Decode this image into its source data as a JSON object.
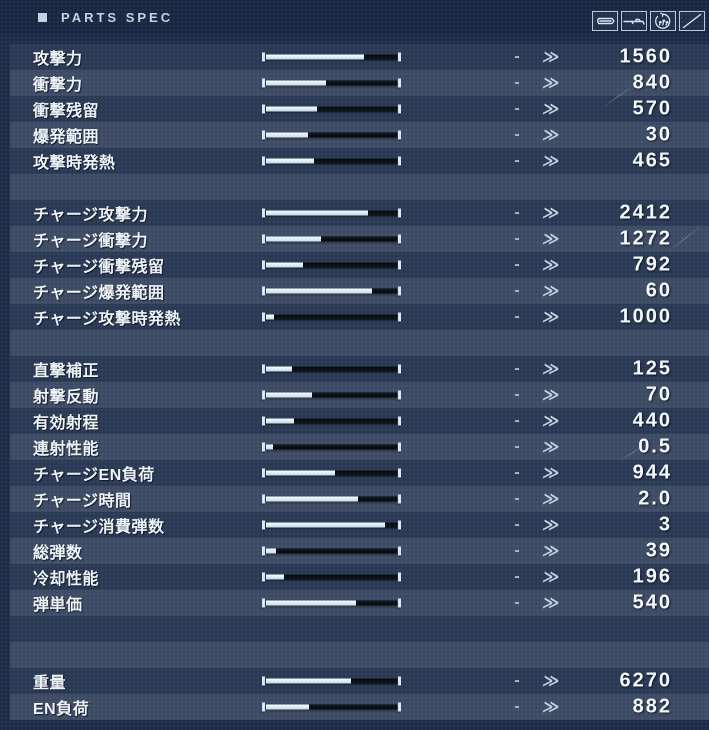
{
  "header": {
    "title": "PARTS SPEC",
    "icons": [
      {
        "name": "bullet-icon"
      },
      {
        "name": "rifle-icon"
      },
      {
        "name": "heat-gauge-icon"
      },
      {
        "name": "slash-icon"
      }
    ]
  },
  "separators": {
    "dash": "-",
    "chevron": "≫"
  },
  "colors": {
    "page_bg": "#1e2c48",
    "header_bg": "#1a2743",
    "row_dark": "#2b3a54",
    "row_light": "#3d4b64",
    "bar_fill": "#dcebf5",
    "bar_track": "#090d13",
    "value_text": "#f3f9fd",
    "label_text": "#eef4f9",
    "header_text": "#c7d2e0"
  },
  "rows": [
    {
      "label": "攻撃力",
      "value": "1560",
      "bar_pct": 75
    },
    {
      "label": "衝撃力",
      "value": "840",
      "bar_pct": 46
    },
    {
      "label": "衝撃残留",
      "value": "570",
      "bar_pct": 39
    },
    {
      "label": "爆発範囲",
      "value": "30",
      "bar_pct": 32
    },
    {
      "label": "攻撃時発熱",
      "value": "465",
      "bar_pct": 37
    },
    {
      "spacer": true
    },
    {
      "label": "チャージ攻撃力",
      "value": "2412",
      "bar_pct": 78
    },
    {
      "label": "チャージ衝撃力",
      "value": "1272",
      "bar_pct": 42
    },
    {
      "label": "チャージ衝撃残留",
      "value": "792",
      "bar_pct": 28
    },
    {
      "label": "チャージ爆発範囲",
      "value": "60",
      "bar_pct": 81
    },
    {
      "label": "チャージ攻撃時発熱",
      "value": "1000",
      "bar_pct": 6
    },
    {
      "spacer": true
    },
    {
      "label": "直撃補正",
      "value": "125",
      "bar_pct": 20
    },
    {
      "label": "射撃反動",
      "value": "70",
      "bar_pct": 35
    },
    {
      "label": "有効射程",
      "value": "440",
      "bar_pct": 21
    },
    {
      "label": "連射性能",
      "value": "0.5",
      "bar_pct": 5
    },
    {
      "label": "チャージEN負荷",
      "value": "944",
      "bar_pct": 53
    },
    {
      "label": "チャージ時間",
      "value": "2.0",
      "bar_pct": 70
    },
    {
      "label": "チャージ消費弾数",
      "value": "3",
      "bar_pct": 91
    },
    {
      "label": "総弾数",
      "value": "39",
      "bar_pct": 8
    },
    {
      "label": "冷却性能",
      "value": "196",
      "bar_pct": 14
    },
    {
      "label": "弾単価",
      "value": "540",
      "bar_pct": 69
    },
    {
      "spacer": true
    },
    {
      "spacer": true
    },
    {
      "label": "重量",
      "value": "6270",
      "bar_pct": 65
    },
    {
      "label": "EN負荷",
      "value": "882",
      "bar_pct": 33
    }
  ]
}
